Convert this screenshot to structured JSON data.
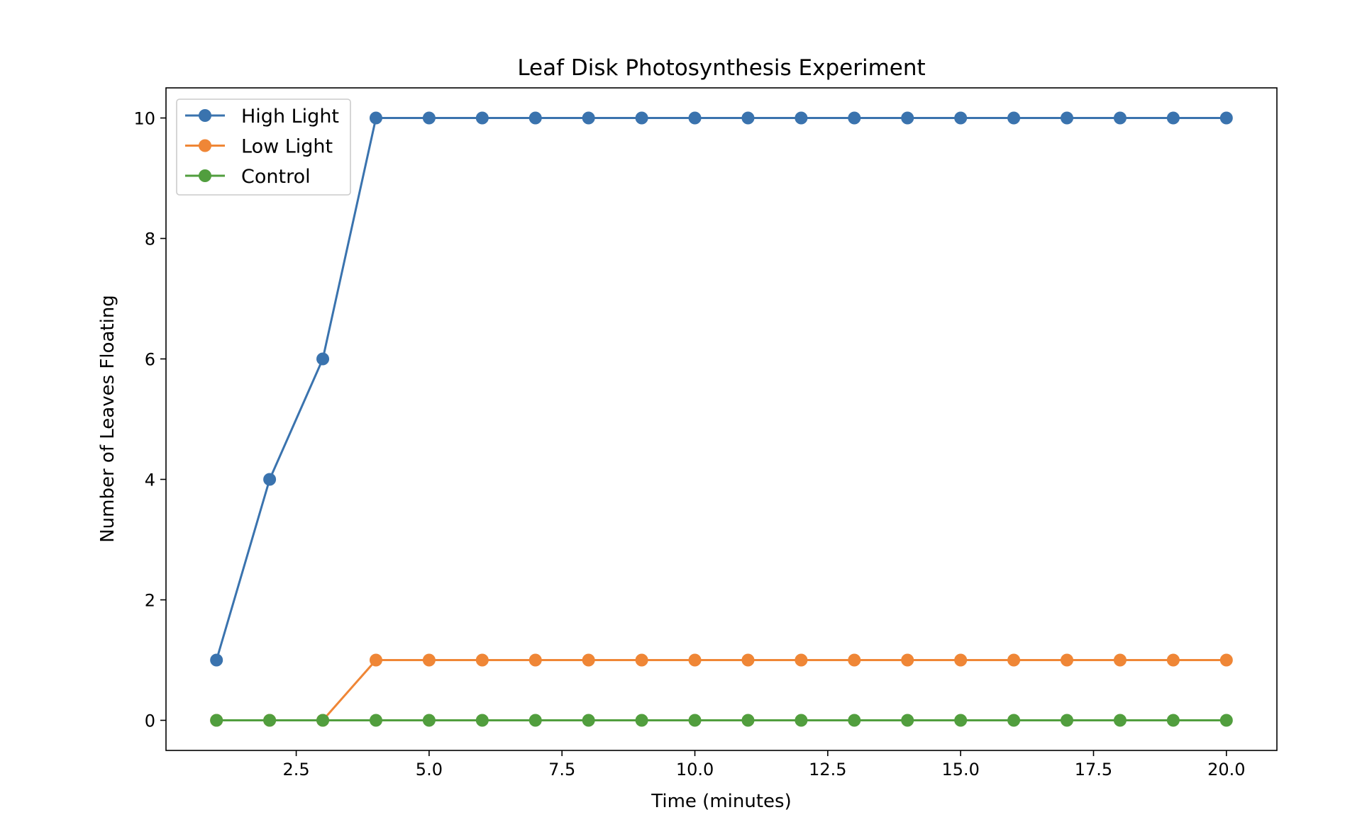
{
  "chart_data": {
    "type": "line",
    "title": "Leaf Disk Photosynthesis Experiment",
    "xlabel": "Time (minutes)",
    "ylabel": "Number of Leaves Floating",
    "x": [
      1,
      2,
      3,
      4,
      5,
      6,
      7,
      8,
      9,
      10,
      11,
      12,
      13,
      14,
      15,
      16,
      17,
      18,
      19,
      20
    ],
    "xlim": [
      0.05,
      20.95
    ],
    "ylim": [
      -0.5,
      10.5
    ],
    "xticks": [
      2.5,
      5.0,
      7.5,
      10.0,
      12.5,
      15.0,
      17.5,
      20.0
    ],
    "xtick_labels": [
      "2.5",
      "5.0",
      "7.5",
      "10.0",
      "12.5",
      "15.0",
      "17.5",
      "20.0"
    ],
    "yticks": [
      0,
      2,
      4,
      6,
      8,
      10
    ],
    "ytick_labels": [
      "0",
      "2",
      "4",
      "6",
      "8",
      "10"
    ],
    "grid": false,
    "legend_position": "top-left",
    "series": [
      {
        "name": "High Light",
        "color": "#3a73ae",
        "values": [
          1,
          4,
          6,
          10,
          10,
          10,
          10,
          10,
          10,
          10,
          10,
          10,
          10,
          10,
          10,
          10,
          10,
          10,
          10,
          10
        ]
      },
      {
        "name": "Low Light",
        "color": "#ef8636",
        "values": [
          0,
          0,
          0,
          1,
          1,
          1,
          1,
          1,
          1,
          1,
          1,
          1,
          1,
          1,
          1,
          1,
          1,
          1,
          1,
          1
        ]
      },
      {
        "name": "Control",
        "color": "#519e3e",
        "values": [
          0,
          0,
          0,
          0,
          0,
          0,
          0,
          0,
          0,
          0,
          0,
          0,
          0,
          0,
          0,
          0,
          0,
          0,
          0,
          0
        ]
      }
    ]
  }
}
